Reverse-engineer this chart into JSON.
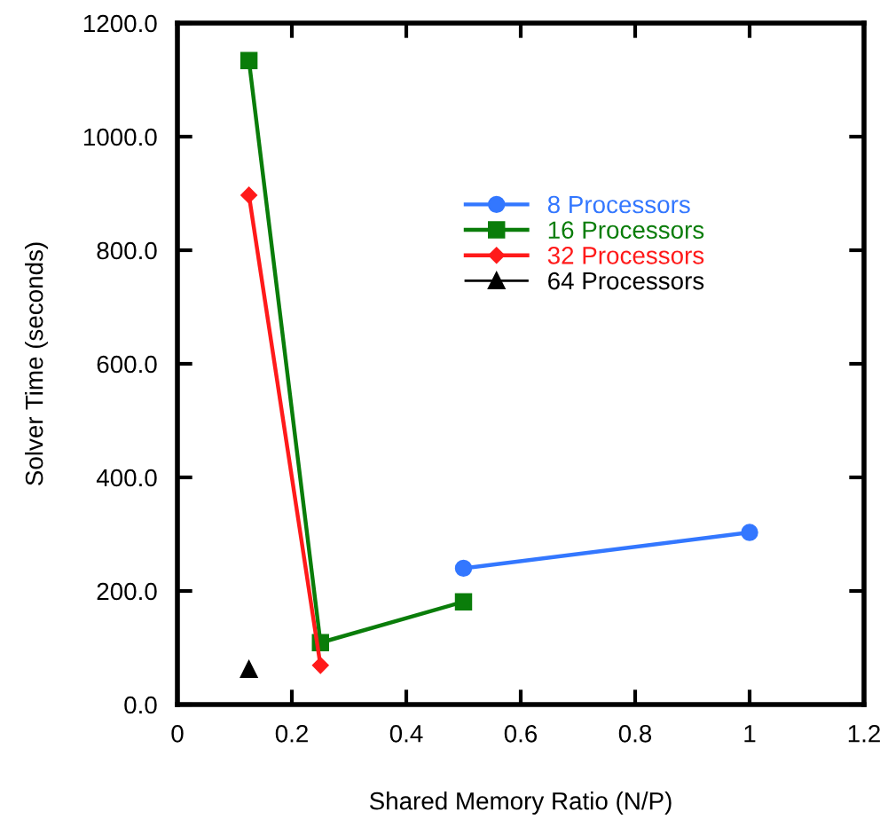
{
  "chart_data": {
    "type": "line",
    "xlabel": "Shared Memory Ratio (N/P)",
    "ylabel": "Solver Time (seconds)",
    "xlim": [
      0,
      1.2
    ],
    "xticks": [
      0,
      0.2,
      0.4,
      0.6,
      0.8,
      1,
      1.2
    ],
    "ylim": [
      0,
      1200
    ],
    "yticks": [
      {
        "value": 0,
        "label": "0.0"
      },
      {
        "value": 200,
        "label": "200.0"
      },
      {
        "value": 400,
        "label": "400.0"
      },
      {
        "value": 600,
        "label": "600.0"
      },
      {
        "value": 800,
        "label": "800.0"
      },
      {
        "value": 1000,
        "label": "1000.0"
      },
      {
        "value": 1200,
        "label": "1200.0"
      }
    ],
    "grid": false,
    "legend": "top right",
    "series": [
      {
        "name": "8 Processors",
        "color": "#3377ff",
        "marker": "circle",
        "x": [
          0.5,
          1
        ],
        "values": [
          240,
          303
        ]
      },
      {
        "name": "16 Processors",
        "color": "#0a7d0a",
        "marker": "square",
        "x": [
          0.125,
          0.25,
          0.5
        ],
        "values": [
          1134,
          109,
          181
        ]
      },
      {
        "name": "32 Processors",
        "color": "#ff1a1a",
        "marker": "diamond",
        "x": [
          0.125,
          0.25
        ],
        "values": [
          897,
          69
        ]
      },
      {
        "name": "64 Processors",
        "color": "#000000",
        "marker": "triangle",
        "x": [
          0.125
        ],
        "values": [
          62
        ]
      }
    ]
  }
}
